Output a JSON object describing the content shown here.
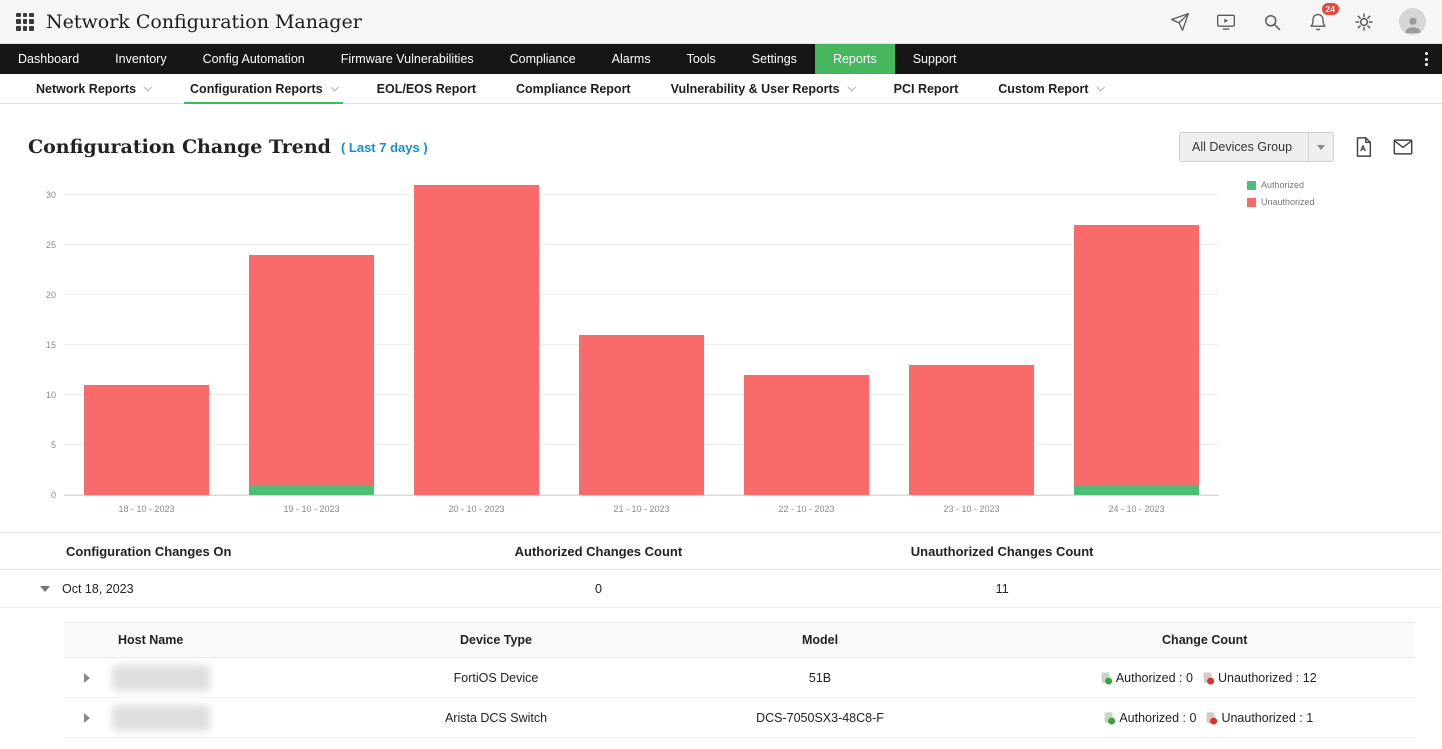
{
  "topbar": {
    "title": "Network Configuration Manager",
    "notification_count": "24"
  },
  "icons": {
    "app_grid": "grid-3x3",
    "launch": "paper-plane",
    "demo": "monitor-play",
    "search": "magnifier",
    "notifications": "bell",
    "settings": "gear",
    "user": "avatar",
    "export_pdf": "pdf-file",
    "email_report": "envelope"
  },
  "mainnav": {
    "items": [
      {
        "label": "Dashboard"
      },
      {
        "label": "Inventory"
      },
      {
        "label": "Config Automation"
      },
      {
        "label": "Firmware Vulnerabilities"
      },
      {
        "label": "Compliance"
      },
      {
        "label": "Alarms"
      },
      {
        "label": "Tools"
      },
      {
        "label": "Settings"
      },
      {
        "label": "Reports",
        "active": true
      },
      {
        "label": "Support"
      }
    ]
  },
  "subnav": {
    "items": [
      {
        "label": "Network Reports",
        "dropdown": true
      },
      {
        "label": "Configuration Reports",
        "dropdown": true,
        "active": true
      },
      {
        "label": "EOL/EOS Report"
      },
      {
        "label": "Compliance Report"
      },
      {
        "label": "Vulnerability & User Reports",
        "dropdown": true
      },
      {
        "label": "PCI Report"
      },
      {
        "label": "Custom Report",
        "dropdown": true
      }
    ]
  },
  "page": {
    "title": "Configuration Change Trend",
    "subtitle": "( Last 7 days )",
    "group_selector_value": "All Devices Group"
  },
  "chart_data": {
    "type": "bar",
    "stacked": true,
    "title": "Configuration Change Trend (Last 7 days)",
    "categories": [
      "18 - 10 - 2023",
      "19 - 10 - 2023",
      "20 - 10 - 2023",
      "21 - 10 - 2023",
      "22 - 10 - 2023",
      "23 - 10 - 2023",
      "24 - 10 - 2023"
    ],
    "series": [
      {
        "name": "Authorized",
        "color": "#4dbd74",
        "values": [
          0,
          1,
          0,
          0,
          0,
          0,
          1
        ]
      },
      {
        "name": "Unauthorized",
        "color": "#f96b6b",
        "values": [
          11,
          23,
          31,
          16,
          12,
          13,
          26
        ]
      }
    ],
    "totals": [
      11,
      24,
      31,
      16,
      12,
      13,
      27
    ],
    "xlabel": "",
    "ylabel": "",
    "yticks": [
      0,
      5,
      10,
      15,
      20,
      25,
      30
    ],
    "ylim": [
      0,
      32
    ],
    "grid": true,
    "legend_position": "top-right"
  },
  "summary_table": {
    "columns": [
      "Configuration Changes On",
      "Authorized Changes Count",
      "Unauthorized Changes Count"
    ],
    "rows": [
      {
        "date": "Oct 18, 2023",
        "authorized": "0",
        "unauthorized": "11",
        "expanded": true
      }
    ]
  },
  "detail_table": {
    "columns": [
      "Host Name",
      "Device Type",
      "Model",
      "Change Count"
    ],
    "rows": [
      {
        "host_redacted": true,
        "device_type": "FortiOS Device",
        "model": "51B",
        "authorized_label": "Authorized : 0",
        "unauthorized_label": "Unauthorized : 12"
      },
      {
        "host_redacted": true,
        "device_type": "Arista DCS Switch",
        "model": "DCS-7050SX3-48C8-F",
        "authorized_label": "Authorized : 0",
        "unauthorized_label": "Unauthorized : 1"
      }
    ]
  },
  "colors": {
    "nav_background": "#161616",
    "accent_green": "#44b75f",
    "bar_red": "#f96b6b",
    "bar_green": "#4dbd74",
    "badge_red": "#e6493c",
    "subtitle_blue": "#168fc9"
  }
}
